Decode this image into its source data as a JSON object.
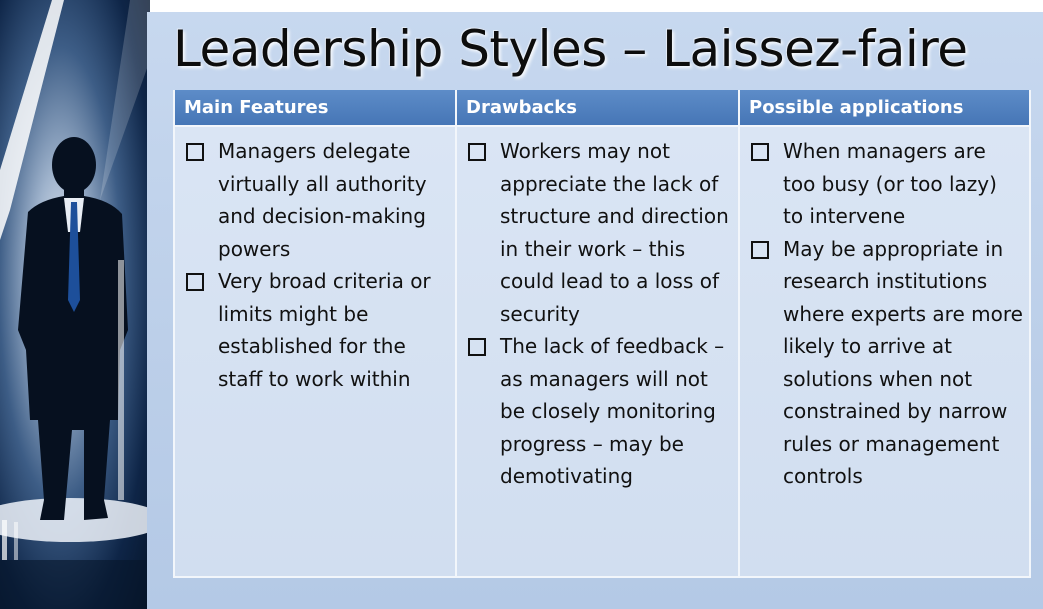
{
  "slide": {
    "title": "Leadership Styles – Laissez-faire"
  },
  "table": {
    "headers": [
      "Main Features",
      "Drawbacks",
      "Possible applications"
    ],
    "columns": [
      [
        "Managers delegate virtually all authority and decision-making powers",
        "Very broad criteria or limits might be established for the staff to work within"
      ],
      [
        "Workers may not appreciate the lack of structure and direction in their work – this could lead to a loss of security",
        "The lack of feedback – as managers will not be closely monitoring progress – may be demotivating"
      ],
      [
        "When managers are too busy (or too lazy) to intervene",
        "May be appropriate in research institutions where experts are more likely to arrive at solutions when not constrained by narrow rules or management controls"
      ]
    ]
  },
  "icons": {
    "bullet": "checkbox-bullet-icon",
    "figure": "businessman-silhouette"
  },
  "colors": {
    "header_bg": "#4a79b9",
    "cell_bg": "#d6e1f2",
    "slide_bg": "#c0d2eb"
  }
}
